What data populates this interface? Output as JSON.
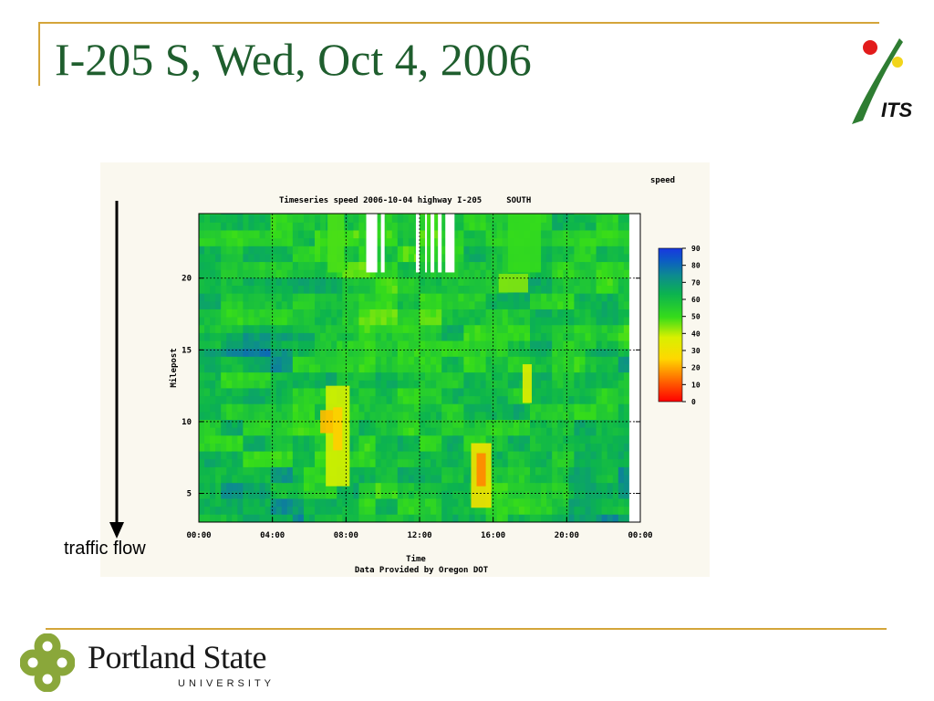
{
  "slide": {
    "title": "I-205 S, Wed, Oct 4, 2006",
    "flow_label": "traffic flow",
    "footer_name": "Portland State",
    "footer_sub": "UNIVERSITY",
    "logo_text": "ITS",
    "colors": {
      "title": "#1f5e2e",
      "accent_rule": "#d4a53a",
      "psu_green": "#8aa73a",
      "its_green": "#2e7d32"
    }
  },
  "chart_data": {
    "type": "heatmap",
    "title": "Timeseries speed 2006-10-04 highway I-205     SOUTH",
    "xlabel": "Time",
    "ylabel": "Milepost",
    "subtitle": "Data Provided by Oregon DOT",
    "colorbar_label": "speed",
    "x_ticks": [
      "00:00",
      "04:00",
      "08:00",
      "12:00",
      "16:00",
      "20:00",
      "00:00"
    ],
    "x_range_hours": [
      0,
      24
    ],
    "y_ticks": [
      5,
      10,
      15,
      20
    ],
    "y_range": [
      3,
      24.5
    ],
    "colorbar_ticks": [
      90,
      80,
      70,
      60,
      50,
      40,
      30,
      20,
      10,
      0
    ],
    "colorbar_range": [
      0,
      90
    ],
    "grid": true,
    "data_end_hour": 23.4,
    "baseline_speed": 58,
    "congestion": [
      {
        "start": 6.9,
        "end": 8.2,
        "mile_lo": 5.5,
        "mile_hi": 12.5,
        "speed": 38
      },
      {
        "start": 6.6,
        "end": 7.3,
        "mile_lo": 9.2,
        "mile_hi": 10.8,
        "speed": 22
      },
      {
        "start": 7.3,
        "end": 7.8,
        "mile_lo": 8.0,
        "mile_hi": 11.0,
        "speed": 24
      },
      {
        "start": 14.8,
        "end": 15.9,
        "mile_lo": 4.0,
        "mile_hi": 8.5,
        "speed": 30
      },
      {
        "start": 15.1,
        "end": 15.6,
        "mile_lo": 5.5,
        "mile_hi": 7.8,
        "speed": 16
      },
      {
        "start": 17.6,
        "end": 18.1,
        "mile_lo": 11.3,
        "mile_hi": 14.0,
        "speed": 36
      },
      {
        "start": 16.3,
        "end": 17.9,
        "mile_lo": 19.0,
        "mile_hi": 20.3,
        "speed": 44
      },
      {
        "start": 7.0,
        "end": 7.9,
        "mile_lo": 20.4,
        "mile_hi": 24.5,
        "speed": 48
      },
      {
        "start": 16.8,
        "end": 18.6,
        "mile_lo": 20.4,
        "mile_hi": 24.5,
        "speed": 50
      }
    ],
    "missing_data": [
      {
        "start": 9.1,
        "end": 9.7,
        "mile_lo": 20.4,
        "mile_hi": 24.5
      },
      {
        "start": 9.9,
        "end": 10.1,
        "mile_lo": 20.4,
        "mile_hi": 24.5
      },
      {
        "start": 11.8,
        "end": 12.0,
        "mile_lo": 20.4,
        "mile_hi": 24.5
      },
      {
        "start": 12.3,
        "end": 12.4,
        "mile_lo": 20.4,
        "mile_hi": 24.5
      },
      {
        "start": 12.6,
        "end": 12.8,
        "mile_lo": 20.4,
        "mile_hi": 24.5
      },
      {
        "start": 13.0,
        "end": 13.2,
        "mile_lo": 20.4,
        "mile_hi": 24.5
      },
      {
        "start": 13.4,
        "end": 13.9,
        "mile_lo": 20.4,
        "mile_hi": 24.5
      }
    ]
  }
}
